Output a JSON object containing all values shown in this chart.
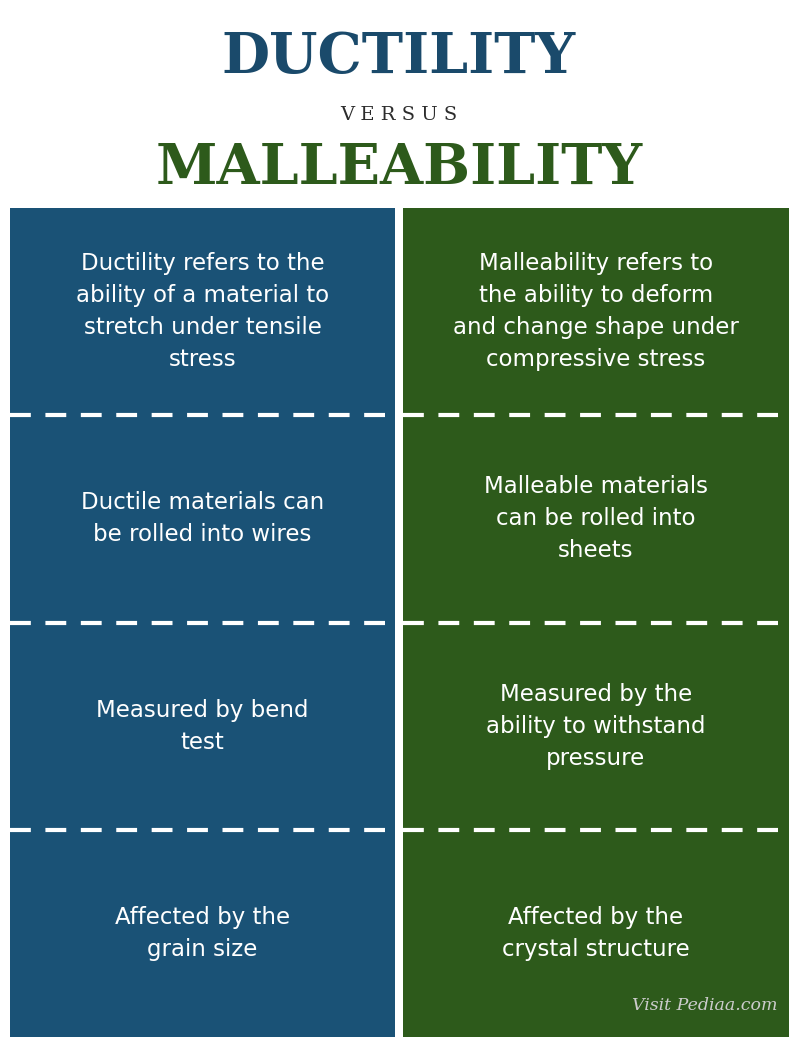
{
  "title1": "DUCTILITY",
  "versus": "V E R S U S",
  "title2": "MALLEABILITY",
  "title1_color": "#1a4a6b",
  "versus_color": "#2c2c2c",
  "title2_color": "#2d5a1b",
  "left_bg": "#1a5276",
  "right_bg": "#2d5a1b",
  "text_color": "#ffffff",
  "watermark": "Visit Pediaa.com",
  "watermark_color": "#cccccc",
  "bg_color": "#ffffff",
  "left_column": [
    "Ductility refers to the\nability of a material to\nstretch under tensile\nstress",
    "Ductile materials can\nbe rolled into wires",
    "Measured by bend\ntest",
    "Affected by the\ngrain size"
  ],
  "right_column": [
    "Malleability refers to\nthe ability to deform\nand change shape under\ncompressive stress",
    "Malleable materials\ncan be rolled into\nsheets",
    "Measured by the\nability to withstand\npressure",
    "Affected by the\ncrystal structure"
  ]
}
